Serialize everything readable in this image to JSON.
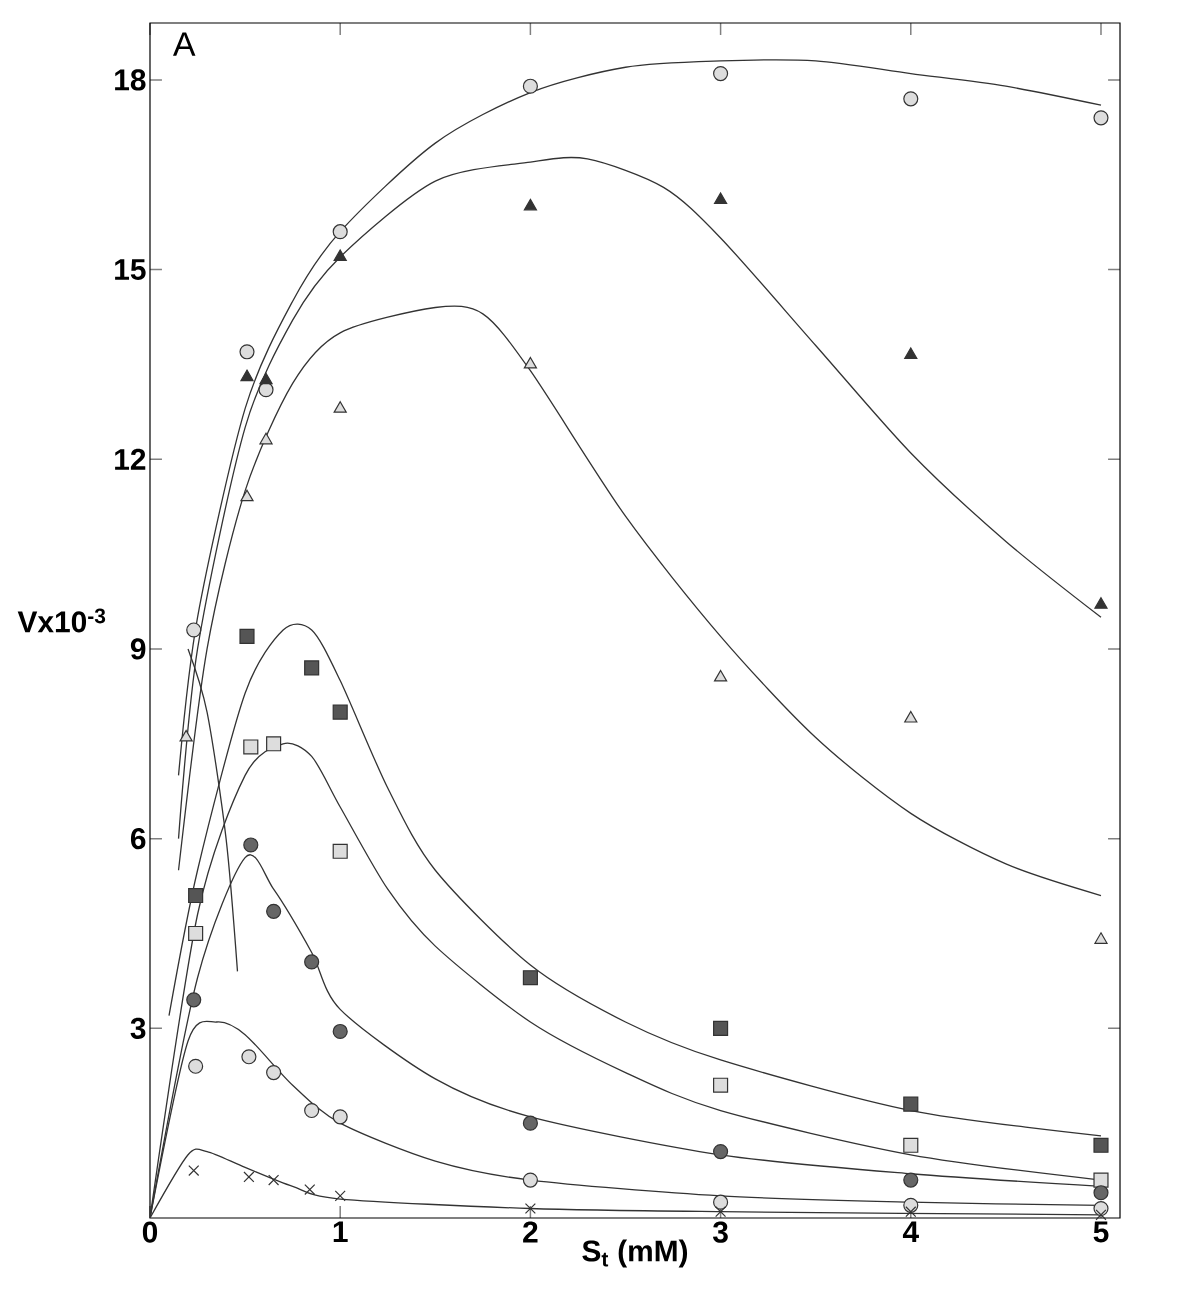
{
  "chart_data": {
    "type": "scatter",
    "xlabel": "S$_{t}$ (mM)",
    "ylabel": "Vx10$^{-3}$",
    "annotations": [
      "A"
    ],
    "xlim": [
      0,
      5.1
    ],
    "ylim": [
      0,
      18.9
    ],
    "xticks": [
      0,
      1,
      2,
      3,
      4,
      5
    ],
    "yticks": [
      3,
      6,
      9,
      12,
      15,
      18
    ],
    "grid": false,
    "series": [
      {
        "marker": "circle",
        "color": "#dddddd",
        "x": [
          0.23,
          0.51,
          0.61,
          1,
          2,
          3,
          4,
          5
        ],
        "values": [
          9.3,
          13.7,
          13.1,
          15.6,
          17.9,
          18.1,
          17.7,
          17.4
        ]
      },
      {
        "marker": "triangle",
        "color": "#333333",
        "x": [
          0.51,
          0.61,
          1,
          2,
          3,
          4,
          5
        ],
        "values": [
          13.3,
          13.25,
          15.2,
          16.0,
          16.1,
          13.65,
          9.7
        ]
      },
      {
        "marker": "triangle",
        "color": "#dddddd",
        "x": [
          0.19,
          0.51,
          0.61,
          1,
          2,
          3,
          4,
          5
        ],
        "values": [
          7.6,
          11.4,
          12.3,
          12.8,
          13.5,
          8.55,
          7.9,
          4.4
        ]
      },
      {
        "marker": "square",
        "color": "#555555",
        "x": [
          0.24,
          0.51,
          0.85,
          1,
          2,
          3,
          4,
          5
        ],
        "values": [
          5.1,
          9.2,
          8.7,
          8.0,
          3.8,
          3.0,
          1.8,
          1.15
        ]
      },
      {
        "marker": "square",
        "color": "#dddddd",
        "x": [
          0.24,
          0.53,
          0.65,
          1,
          3,
          4,
          5
        ],
        "values": [
          4.5,
          7.45,
          7.5,
          5.8,
          2.1,
          1.15,
          0.6
        ]
      },
      {
        "marker": "circle",
        "color": "#666666",
        "x": [
          0.23,
          0.53,
          0.65,
          0.85,
          1,
          2,
          3,
          4,
          5
        ],
        "values": [
          3.45,
          5.9,
          4.85,
          4.05,
          2.95,
          1.5,
          1.05,
          0.6,
          0.4
        ]
      },
      {
        "marker": "circle",
        "color": "#dddddd",
        "x": [
          0.24,
          0.52,
          0.65,
          0.85,
          1,
          2,
          3,
          4,
          5
        ],
        "values": [
          2.4,
          2.55,
          2.3,
          1.7,
          1.6,
          0.6,
          0.25,
          0.2,
          0.15
        ]
      },
      {
        "marker": "cross",
        "color": "#333333",
        "x": [
          0.23,
          0.52,
          0.65,
          0.84,
          1,
          2,
          3,
          4,
          5
        ],
        "values": [
          0.75,
          0.65,
          0.6,
          0.45,
          0.35,
          0.15,
          0.1,
          0.1,
          0.05
        ]
      },
      {
        "type": "line",
        "color": "#333333",
        "x": [
          0.15,
          0.25,
          0.5,
          0.75,
          1,
          1.5,
          2,
          2.5,
          3,
          3.5,
          4,
          4.5,
          5
        ],
        "values": [
          7,
          9.5,
          12.8,
          14.5,
          15.6,
          17,
          17.8,
          18.2,
          18.3,
          18.3,
          18.1,
          17.9,
          17.6
        ]
      },
      {
        "type": "line",
        "color": "#333333",
        "x": [
          0.15,
          0.25,
          0.5,
          0.75,
          1,
          1.5,
          2,
          2.3,
          2.7,
          3,
          3.5,
          4,
          4.5,
          5
        ],
        "values": [
          6,
          9,
          12.5,
          14.2,
          15.2,
          16.4,
          16.7,
          16.75,
          16.3,
          15.5,
          13.8,
          12.1,
          10.7,
          9.5
        ]
      },
      {
        "type": "line",
        "color": "#333333",
        "x": [
          0.15,
          0.3,
          0.5,
          0.75,
          1,
          1.5,
          1.75,
          2,
          2.5,
          3,
          3.5,
          4,
          4.5,
          5
        ],
        "values": [
          5.5,
          9,
          11.5,
          13.2,
          14,
          14.4,
          14.3,
          13.4,
          11.1,
          9.2,
          7.6,
          6.4,
          5.6,
          5.1
        ]
      },
      {
        "type": "line",
        "color": "#333333",
        "x": [
          0.1,
          0.25,
          0.5,
          0.7,
          0.85,
          1,
          1.25,
          1.5,
          2,
          2.5,
          3,
          4,
          5
        ],
        "values": [
          3.2,
          5.5,
          8.3,
          9.3,
          9.3,
          8.5,
          6.8,
          5.5,
          4.0,
          3.1,
          2.5,
          1.7,
          1.3
        ]
      },
      {
        "type": "line",
        "color": "#333333",
        "x": [
          0,
          0.25,
          0.5,
          0.7,
          0.85,
          1,
          1.25,
          1.5,
          2,
          2.5,
          3,
          4,
          5
        ],
        "values": [
          0,
          4.8,
          7.0,
          7.5,
          7.3,
          6.5,
          5.2,
          4.3,
          3.1,
          2.3,
          1.7,
          1.0,
          0.6
        ]
      },
      {
        "type": "line",
        "color": "#333333",
        "x": [
          0,
          0.25,
          0.5,
          0.65,
          0.85,
          1,
          1.5,
          2,
          3,
          4,
          5
        ],
        "values": [
          0,
          3.8,
          5.7,
          5.2,
          4.2,
          3.3,
          2.2,
          1.6,
          1.0,
          0.7,
          0.5
        ]
      },
      {
        "type": "line",
        "color": "#333333",
        "x": [
          0,
          0.2,
          0.35,
          0.5,
          0.75,
          1,
          1.5,
          2,
          3,
          4,
          5
        ],
        "values": [
          0,
          2.8,
          3.1,
          2.9,
          2.1,
          1.5,
          0.9,
          0.6,
          0.35,
          0.25,
          0.2
        ]
      },
      {
        "type": "line",
        "color": "#333333",
        "x": [
          0,
          0.2,
          0.3,
          0.5,
          0.75,
          1,
          2,
          3,
          5
        ],
        "values": [
          0,
          1.0,
          1.05,
          0.8,
          0.5,
          0.3,
          0.15,
          0.1,
          0.05
        ]
      },
      {
        "type": "line",
        "color": "#333333",
        "x": [
          0.2,
          0.3,
          0.4,
          0.46
        ],
        "values": [
          9.0,
          8.0,
          6.0,
          3.9
        ]
      }
    ]
  }
}
